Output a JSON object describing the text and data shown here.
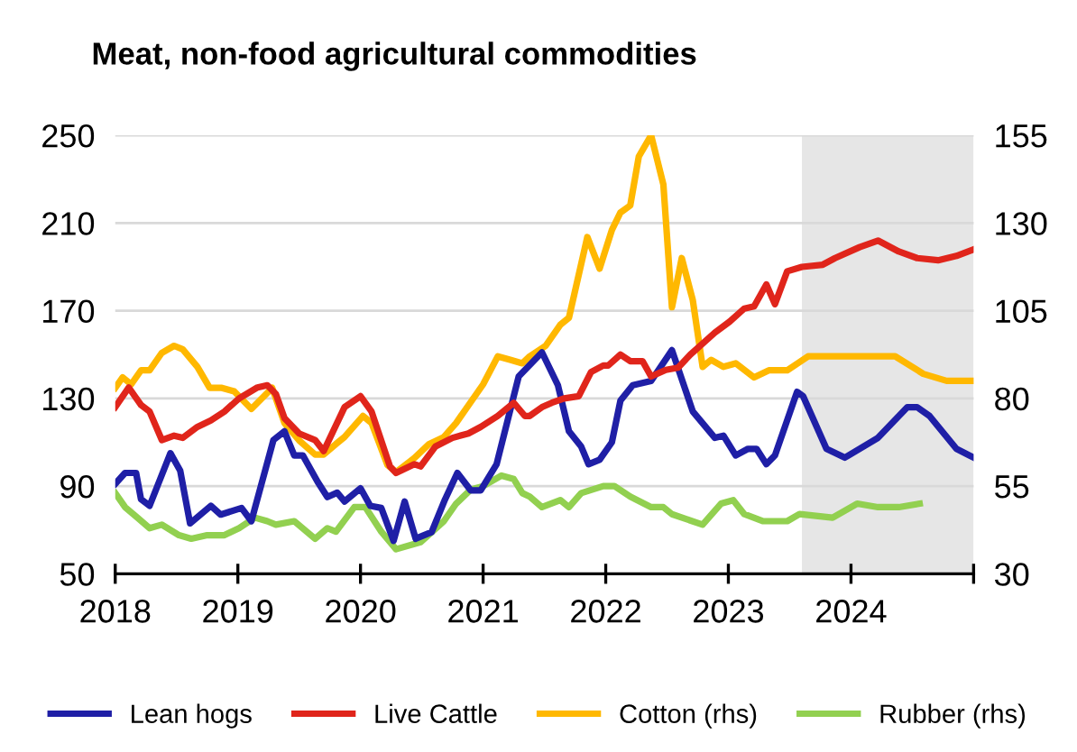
{
  "chart_data": {
    "type": "line",
    "title": "Meat, non-food agricultural commodities",
    "xlim": [
      2018,
      2025
    ],
    "xticks": [
      2018,
      2019,
      2020,
      2021,
      2022,
      2023,
      2024,
      {
        "value": 2025,
        "label": null
      }
    ],
    "ylim": [
      50,
      250
    ],
    "yticks": [
      50,
      90,
      130,
      170,
      210,
      250
    ],
    "y2lim": [
      30,
      155
    ],
    "y2ticks": [
      30,
      55,
      80,
      105,
      130,
      155
    ],
    "grid": "y",
    "legend": "bottom",
    "bands": [
      {
        "axis": "x",
        "from": 2023.6,
        "to": 2025,
        "color": "#e6e6e6"
      }
    ],
    "series": [
      {
        "name": "Lean hogs",
        "color": "#1f1fa6",
        "x": [
          2018.0,
          2018.08,
          2018.17,
          2018.21,
          2018.28,
          2018.45,
          2018.53,
          2018.61,
          2018.78,
          2018.86,
          2019.03,
          2019.11,
          2019.29,
          2019.38,
          2019.46,
          2019.53,
          2019.65,
          2019.73,
          2019.81,
          2019.87,
          2020.0,
          2020.08,
          2020.17,
          2020.27,
          2020.36,
          2020.45,
          2020.58,
          2020.69,
          2020.79,
          2020.9,
          2020.98,
          2021.11,
          2021.29,
          2021.48,
          2021.61,
          2021.7,
          2021.8,
          2021.86,
          2021.95,
          2022.05,
          2022.12,
          2022.22,
          2022.37,
          2022.54,
          2022.71,
          2022.89,
          2022.96,
          2023.06,
          2023.16,
          2023.23,
          2023.31,
          2023.38,
          2023.56,
          2023.61,
          2023.8,
          2023.95,
          2024.22,
          2024.46,
          2024.54,
          2024.64,
          2024.86,
          2025.0
        ],
        "values": [
          91,
          96,
          96,
          84,
          81,
          105,
          97,
          73,
          81,
          77,
          80,
          74,
          111,
          115,
          104,
          104,
          92,
          85,
          87,
          83,
          89,
          81,
          80,
          65,
          83,
          66,
          69,
          84,
          96,
          88,
          88,
          100,
          140,
          151,
          136,
          115,
          108,
          100,
          102,
          110,
          129,
          136,
          138,
          152,
          124,
          112,
          113,
          104,
          107,
          107,
          100,
          104,
          133,
          131,
          107,
          103,
          112,
          126,
          126,
          122,
          107,
          103
        ]
      },
      {
        "name": "Live Cattle",
        "color": "#e0251b",
        "x": [
          2018.0,
          2018.11,
          2018.21,
          2018.28,
          2018.38,
          2018.48,
          2018.55,
          2018.67,
          2018.78,
          2018.89,
          2019.01,
          2019.16,
          2019.24,
          2019.31,
          2019.38,
          2019.5,
          2019.63,
          2019.7,
          2019.87,
          2020.0,
          2020.09,
          2020.24,
          2020.29,
          2020.44,
          2020.49,
          2020.61,
          2020.75,
          2020.88,
          2020.98,
          2021.12,
          2021.25,
          2021.34,
          2021.38,
          2021.48,
          2021.56,
          2021.66,
          2021.78,
          2021.88,
          2021.98,
          2022.02,
          2022.12,
          2022.2,
          2022.3,
          2022.37,
          2022.49,
          2022.59,
          2022.69,
          2022.89,
          2023.01,
          2023.13,
          2023.21,
          2023.31,
          2023.38,
          2023.48,
          2023.6,
          2023.77,
          2023.87,
          2024.07,
          2024.22,
          2024.39,
          2024.54,
          2024.71,
          2024.86,
          2025.0
        ],
        "values": [
          126,
          135,
          127,
          124,
          111,
          113,
          112,
          117,
          120,
          124,
          130,
          135,
          136,
          132,
          121,
          114,
          111,
          106,
          126,
          131,
          124,
          99,
          96,
          100,
          99,
          108,
          112,
          114,
          117,
          122,
          128,
          122,
          122,
          126,
          128,
          130,
          131,
          142,
          145,
          145,
          150,
          147,
          147,
          140,
          143,
          144,
          150,
          160,
          165,
          171,
          172,
          182,
          173,
          188,
          190,
          191,
          194,
          199,
          202,
          197,
          194,
          193,
          195,
          198
        ]
      },
      {
        "name": "Cotton (rhs)",
        "color": "#ffb800",
        "axis": "y2",
        "x": [
          2018.0,
          2018.06,
          2018.13,
          2018.21,
          2018.28,
          2018.38,
          2018.48,
          2018.55,
          2018.67,
          2018.77,
          2018.87,
          2018.97,
          2019.11,
          2019.28,
          2019.38,
          2019.5,
          2019.63,
          2019.7,
          2019.8,
          2019.87,
          2020.02,
          2020.09,
          2020.22,
          2020.29,
          2020.44,
          2020.56,
          2020.68,
          2020.78,
          2020.9,
          2021.0,
          2021.12,
          2021.22,
          2021.32,
          2021.38,
          2021.51,
          2021.63,
          2021.7,
          2021.85,
          2021.95,
          2022.05,
          2022.12,
          2022.2,
          2022.27,
          2022.37,
          2022.47,
          2022.54,
          2022.62,
          2022.71,
          2022.79,
          2022.86,
          2022.96,
          2023.06,
          2023.21,
          2023.33,
          2023.48,
          2023.65,
          2023.87,
          2024.36,
          2024.59,
          2024.78,
          2025.0
        ],
        "values": [
          83,
          86,
          84,
          88,
          88,
          93,
          95,
          94,
          89,
          83,
          83,
          82,
          77,
          83,
          73,
          68,
          64,
          64,
          67,
          69,
          75,
          73,
          61,
          59,
          63,
          67,
          69,
          73,
          79,
          84,
          92,
          91,
          90,
          92,
          95,
          101,
          103,
          126,
          117,
          128,
          133,
          135,
          149,
          155,
          141,
          106,
          120,
          108,
          89,
          91,
          89,
          90,
          86,
          88,
          88,
          92,
          92,
          92,
          87,
          85,
          85
        ]
      },
      {
        "name": "Rubber (rhs)",
        "color": "#92d050",
        "axis": "y2",
        "x": [
          2018.0,
          2018.08,
          2018.18,
          2018.28,
          2018.38,
          2018.52,
          2018.62,
          2018.75,
          2018.89,
          2019.01,
          2019.14,
          2019.24,
          2019.31,
          2019.46,
          2019.63,
          2019.73,
          2019.8,
          2019.95,
          2020.04,
          2020.17,
          2020.29,
          2020.49,
          2020.68,
          2020.78,
          2020.9,
          2021.0,
          2021.15,
          2021.25,
          2021.32,
          2021.38,
          2021.48,
          2021.63,
          2021.7,
          2021.8,
          2021.98,
          2022.07,
          2022.2,
          2022.37,
          2022.47,
          2022.54,
          2022.79,
          2022.94,
          2023.04,
          2023.13,
          2023.28,
          2023.48,
          2023.58,
          2023.85,
          2024.05,
          2024.22,
          2024.39,
          2024.56
        ],
        "values": [
          53,
          49,
          46,
          43,
          44,
          41,
          40,
          41,
          41,
          43,
          46,
          45,
          44,
          45,
          40,
          43,
          42,
          49,
          49,
          42,
          37,
          39,
          45,
          50,
          54,
          55,
          58,
          57,
          53,
          52,
          49,
          51,
          49,
          53,
          55,
          55,
          52,
          49,
          49,
          47,
          44,
          50,
          51,
          47,
          45,
          45,
          47,
          46,
          50,
          49,
          49,
          50
        ]
      }
    ]
  }
}
